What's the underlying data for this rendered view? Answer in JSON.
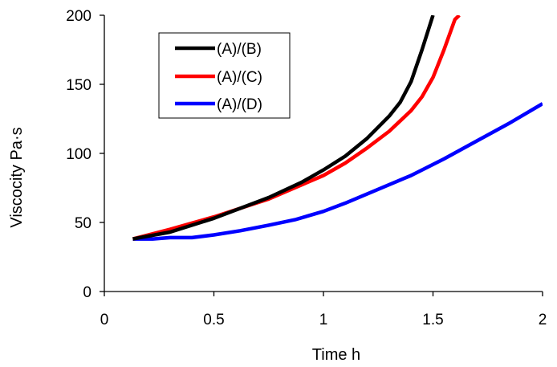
{
  "chart_data": {
    "type": "line",
    "xlabel": "Time h",
    "ylabel": "Viscocity  Pa·s",
    "xlim": [
      0,
      2
    ],
    "ylim": [
      0,
      200
    ],
    "xticks": [
      "0",
      "0.5",
      "1",
      "1.5",
      "2"
    ],
    "yticks": [
      "0",
      "50",
      "100",
      "150",
      "200"
    ],
    "legend_position": "top-left",
    "series": [
      {
        "name": "(A)/(B)",
        "color": "#000000",
        "x": [
          0.13,
          0.3,
          0.5,
          0.75,
          0.9,
          1.0,
          1.1,
          1.2,
          1.3,
          1.35,
          1.4,
          1.45,
          1.5
        ],
        "y": [
          38,
          43,
          53,
          68,
          79,
          88,
          98,
          111,
          127,
          137,
          152,
          175,
          200
        ]
      },
      {
        "name": "(A)/(C)",
        "color": "#ff0000",
        "x": [
          0.13,
          0.3,
          0.5,
          0.75,
          1.0,
          1.1,
          1.2,
          1.3,
          1.4,
          1.45,
          1.5,
          1.55,
          1.6,
          1.62
        ],
        "y": [
          38,
          45,
          54,
          67,
          84,
          93,
          104,
          116,
          131,
          141,
          155,
          175,
          197,
          200
        ]
      },
      {
        "name": "(A)/(D)",
        "color": "#0000ff",
        "x": [
          0.13,
          0.22,
          0.3,
          0.4,
          0.5,
          0.62,
          0.75,
          0.87,
          1.0,
          1.1,
          1.25,
          1.4,
          1.55,
          1.7,
          1.85,
          2.0
        ],
        "y": [
          38,
          38,
          39,
          39,
          41,
          44,
          48,
          52,
          58,
          64,
          74,
          84,
          96,
          109,
          122,
          136
        ]
      }
    ]
  }
}
